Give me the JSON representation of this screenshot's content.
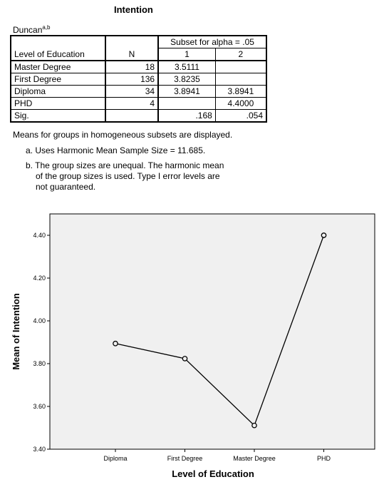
{
  "table": {
    "title": "Intention",
    "method": "Duncan",
    "method_sup": "a,b",
    "header": {
      "group_label": "Level of Education",
      "n_label": "N",
      "subset_label": "Subset for alpha = .05",
      "subset_cols": [
        "1",
        "2"
      ]
    },
    "rows": [
      {
        "label": "Master Degree",
        "n": "18",
        "s1": "3.5111",
        "s2": ""
      },
      {
        "label": "First Degree",
        "n": "136",
        "s1": "3.8235",
        "s2": ""
      },
      {
        "label": "Diploma",
        "n": "34",
        "s1": "3.8941",
        "s2": "3.8941"
      },
      {
        "label": "PHD",
        "n": "4",
        "s1": "",
        "s2": "4.4000"
      },
      {
        "label": "Sig.",
        "n": "",
        "s1": ".168",
        "s2": ".054"
      }
    ],
    "footnotes": {
      "main": "Means for groups in homogeneous subsets are displayed.",
      "a": "a. Uses Harmonic Mean Sample Size = 11.685.",
      "b1": "b. The group sizes are unequal. The harmonic mean",
      "b2": "of the group sizes is used. Type I error levels are",
      "b3": "not guaranteed."
    }
  },
  "chart_data": {
    "type": "line",
    "categories": [
      "Diploma",
      "First Degree",
      "Master Degree",
      "PHD"
    ],
    "series": [
      {
        "values": [
          3.8941,
          3.8235,
          3.5111,
          4.4
        ]
      }
    ],
    "xlabel": "Level of Education",
    "ylabel": "Mean of Intention",
    "ylim": [
      3.4,
      4.5
    ],
    "yticks": [
      3.4,
      3.6,
      3.8,
      4.0,
      4.2,
      4.4
    ],
    "ytick_labels": [
      "3.40",
      "3.60",
      "3.80",
      "4.00",
      "4.20",
      "4.40"
    ],
    "plot_background": "#f0f0f0",
    "line_color": "#000000",
    "marker": "open-circle",
    "grid": false
  }
}
